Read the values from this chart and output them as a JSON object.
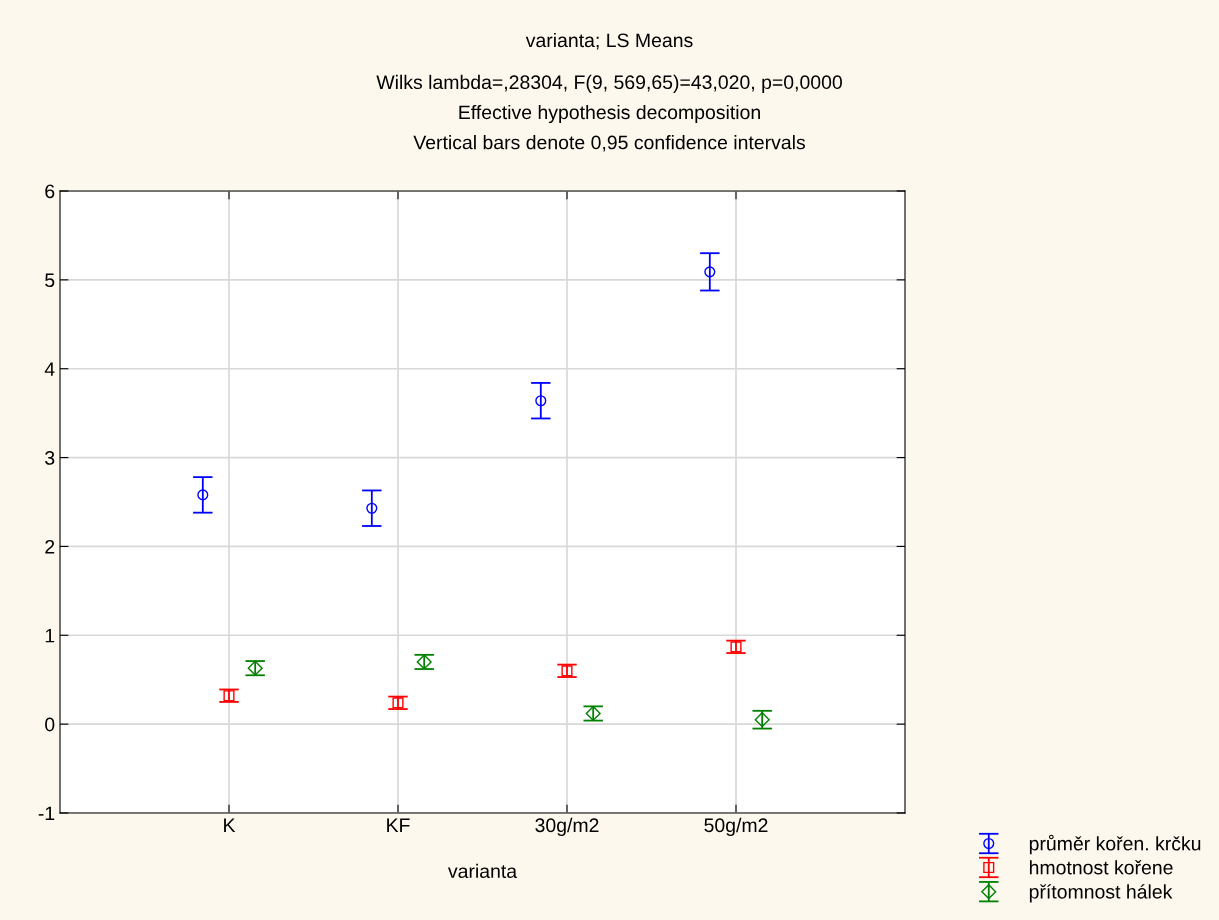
{
  "chart_data": {
    "type": "scatter",
    "title": "varianta; LS Means",
    "subtitle": "Wilks lambda=,28304, F(9, 569,65)=43,020, p=0,0000\nEffective hypothesis decomposition\nVertical bars denote 0,95 confidence intervals",
    "xlabel": "varianta",
    "categories": [
      "K",
      "KF",
      "30g/m2",
      "50g/m2"
    ],
    "series": [
      {
        "name": "průměr kořen. krčku",
        "color": "#0000ff",
        "marker": "circle",
        "values": [
          2.58,
          2.43,
          3.64,
          5.09
        ],
        "errors": [
          0.2,
          0.2,
          0.2,
          0.21
        ]
      },
      {
        "name": "hmotnost kořene",
        "color": "#ff0000",
        "marker": "square",
        "values": [
          0.32,
          0.24,
          0.6,
          0.87
        ],
        "errors": [
          0.07,
          0.07,
          0.07,
          0.07
        ]
      },
      {
        "name": "přítomnost hálek",
        "color": "#008000",
        "marker": "diamond",
        "values": [
          0.63,
          0.7,
          0.12,
          0.05
        ],
        "errors": [
          0.08,
          0.08,
          0.08,
          0.1
        ]
      }
    ],
    "ylim": [
      -1,
      6
    ],
    "yticks": [
      -1,
      0,
      1,
      2,
      3,
      4,
      5,
      6
    ],
    "grid": true,
    "legend": "bottom right"
  }
}
